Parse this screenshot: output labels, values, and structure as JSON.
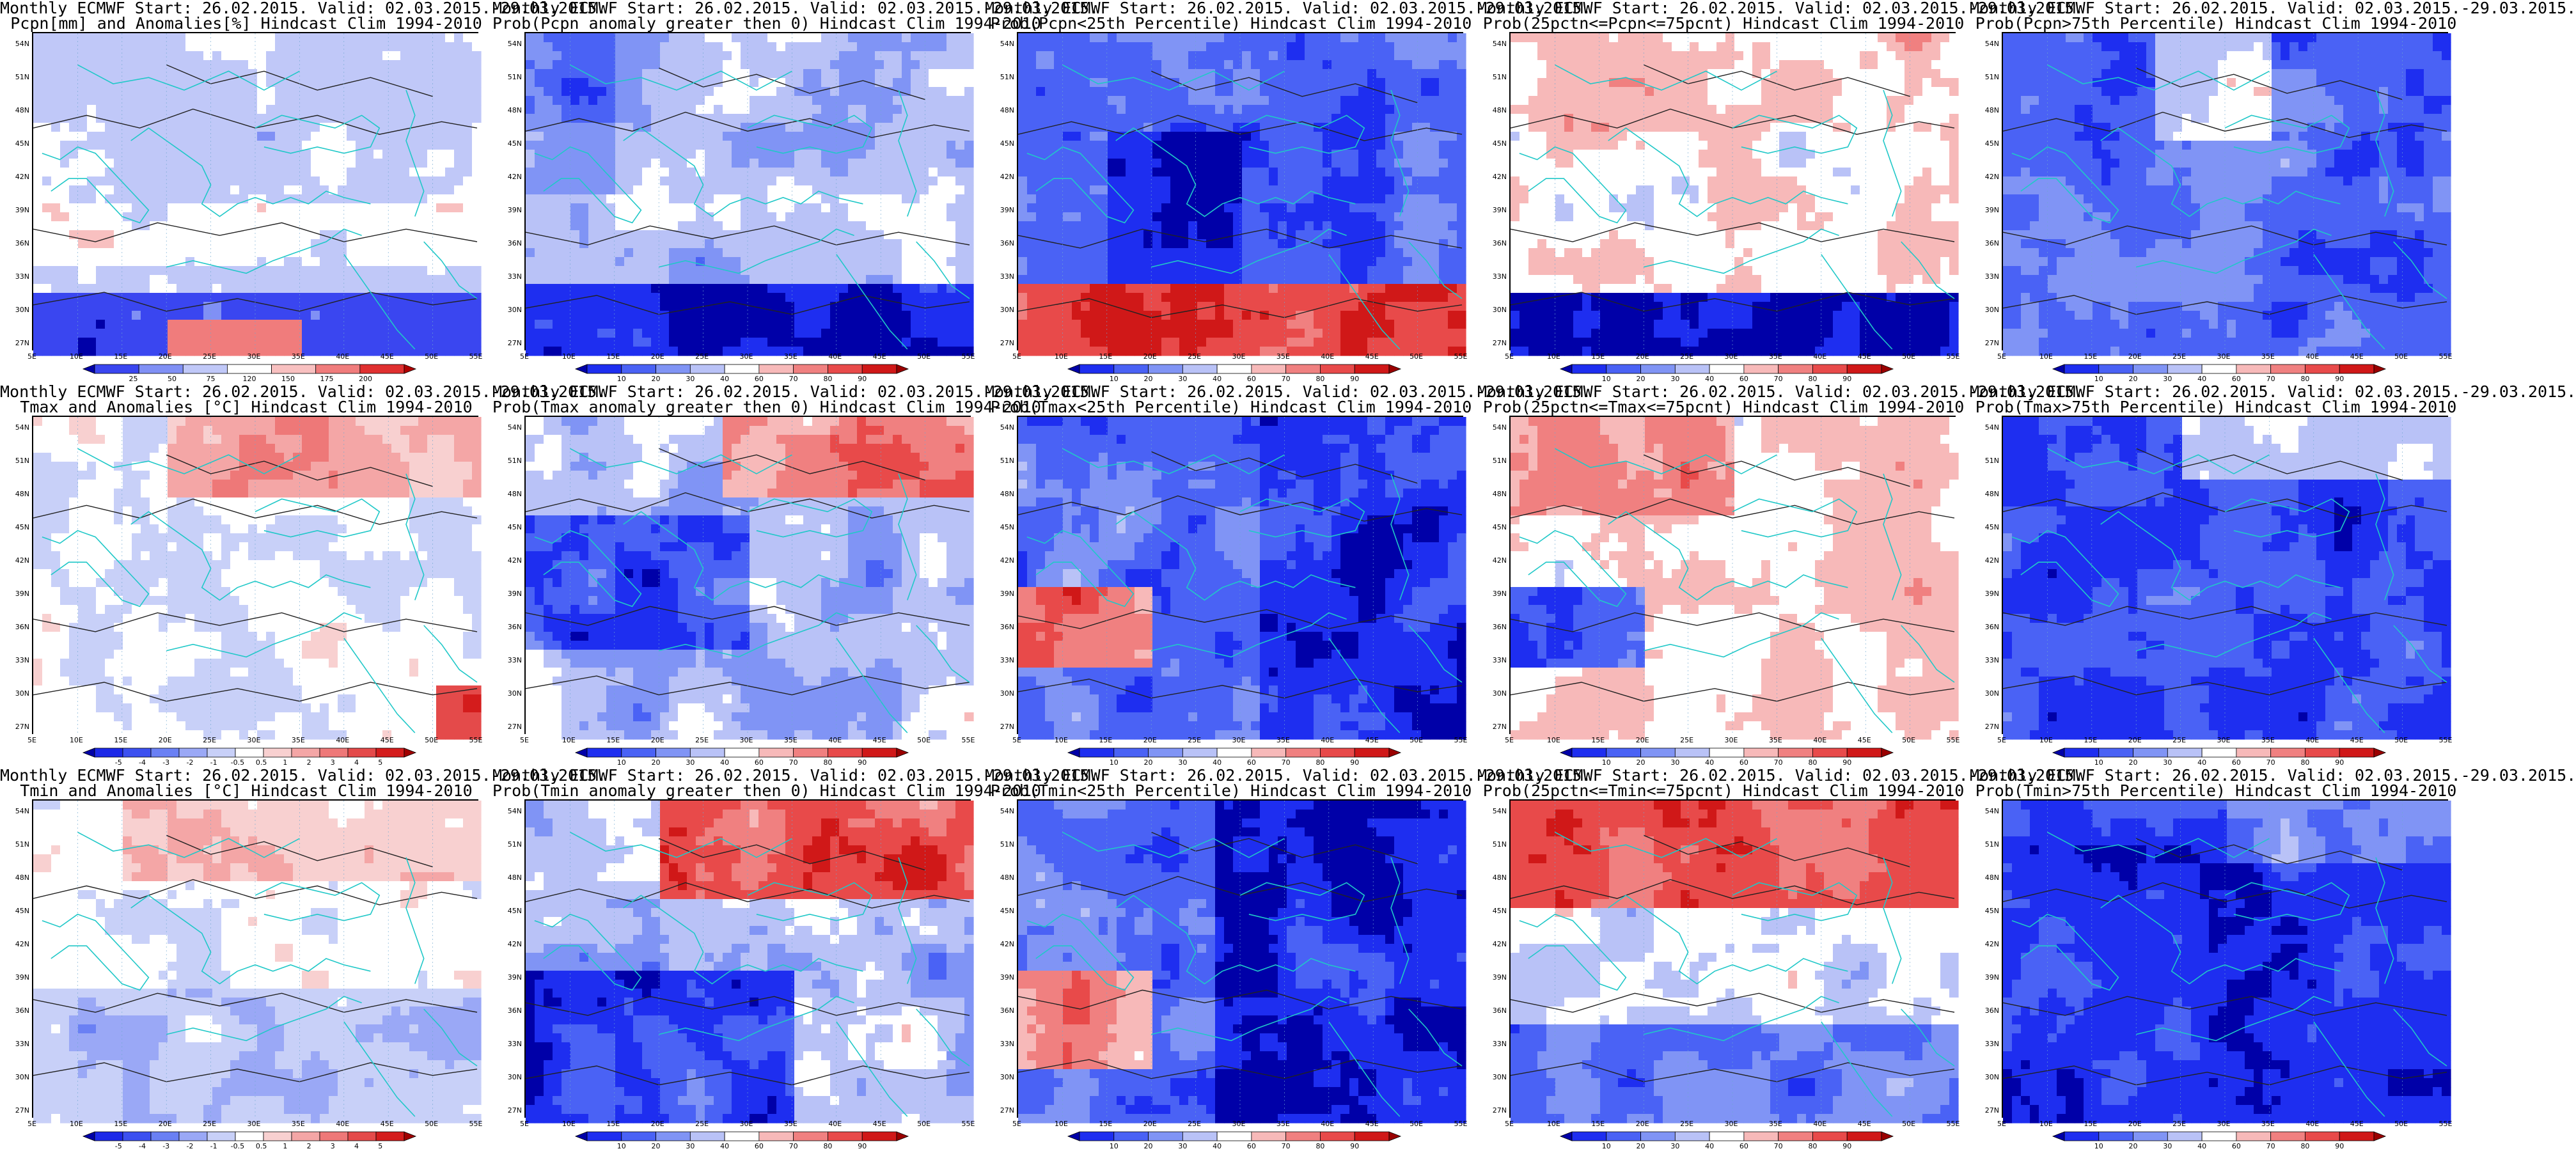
{
  "figure": {
    "panels": [
      {
        "title1": "Monthly ECMWF Start: 26.02.2015. Valid: 02.03.2015.-29.03.2015.",
        "title2": "Pcpn[mm] and Anomalies[%] Hindcast Clim 1994-2010",
        "scale": "anom_pcpn",
        "pattern": "pcpn_anom"
      },
      {
        "title1": "Monthly ECMWF Start: 26.02.2015. Valid: 02.03.2015.-29.03.2015.",
        "title2": "Prob(Pcpn anomaly greater then 0) Hindcast Clim 1994-2010",
        "scale": "prob",
        "pattern": "pcpn_pos"
      },
      {
        "title1": "Monthly ECMWF Start: 26.02.2015. Valid: 02.03.2015.-29.03.2015.",
        "title2": "Prob(Pcpn<25th Percentile) Hindcast Clim 1994-2010",
        "scale": "prob",
        "pattern": "pcpn_low"
      },
      {
        "title1": "Monthly ECMWF Start: 26.02.2015. Valid: 02.03.2015.-29.03.2015.",
        "title2": "Prob(25pctn<=Pcpn<=75pcnt) Hindcast Clim 1994-2010",
        "scale": "prob",
        "pattern": "pcpn_mid"
      },
      {
        "title1": "Monthly ECMWF Start: 26.02.2015. Valid: 02.03.2015.-29.03.2015.",
        "title2": "Prob(Pcpn>75th Percentile) Hindcast Clim 1994-2010",
        "scale": "prob",
        "pattern": "pcpn_high"
      },
      {
        "title1": "Monthly ECMWF Start: 26.02.2015. Valid: 02.03.2015.-29.03.2015.",
        "title2": "Tmax and Anomalies [°C] Hindcast Clim 1994-2010",
        "scale": "anom_temp",
        "pattern": "tmax_anom"
      },
      {
        "title1": "Monthly ECMWF Start: 26.02.2015. Valid: 02.03.2015.-29.03.2015.",
        "title2": "Prob(Tmax anomaly greater then 0) Hindcast Clim 1994-2010",
        "scale": "prob",
        "pattern": "tmax_pos"
      },
      {
        "title1": "Monthly ECMWF Start: 26.02.2015. Valid: 02.03.2015.-29.03.2015.",
        "title2": "Prob(Tmax<25th Percentile) Hindcast Clim 1994-2010",
        "scale": "prob",
        "pattern": "tmax_low"
      },
      {
        "title1": "Monthly ECMWF Start: 26.02.2015. Valid: 02.03.2015.-29.03.2015.",
        "title2": "Prob(25pctn<=Tmax<=75pcnt) Hindcast Clim 1994-2010",
        "scale": "prob",
        "pattern": "tmax_mid"
      },
      {
        "title1": "Monthly ECMWF Start: 26.02.2015. Valid: 02.03.2015.-29.03.2015.",
        "title2": "Prob(Tmax>75th Percentile) Hindcast Clim 1994-2010",
        "scale": "prob",
        "pattern": "tmax_high"
      },
      {
        "title1": "Monthly ECMWF Start: 26.02.2015. Valid: 02.03.2015.-29.03.2015.",
        "title2": "Tmin and Anomalies [°C] Hindcast Clim 1994-2010",
        "scale": "anom_temp",
        "pattern": "tmin_anom"
      },
      {
        "title1": "Monthly ECMWF Start: 26.02.2015. Valid: 02.03.2015.-29.03.2015.",
        "title2": "Prob(Tmin anomaly greater then 0) Hindcast Clim 1994-2010",
        "scale": "prob",
        "pattern": "tmin_pos"
      },
      {
        "title1": "Monthly ECMWF Start: 26.02.2015. Valid: 02.03.2015.-29.03.2015.",
        "title2": "Prob(Tmin<25th Percentile) Hindcast Clim 1994-2010",
        "scale": "prob",
        "pattern": "tmin_low"
      },
      {
        "title1": "Monthly ECMWF Start: 26.02.2015. Valid: 02.03.2015.-29.03.2015.",
        "title2": "Prob(25pctn<=Tmin<=75pcnt) Hindcast Clim 1994-2010",
        "scale": "prob",
        "pattern": "tmin_mid"
      },
      {
        "title1": "Monthly ECMWF Start: 26.02.2015. Valid: 02.03.2015.-29.03.2015.",
        "title2": "Prob(Tmin>75th Percentile) Hindcast Clim 1994-2010",
        "scale": "prob",
        "pattern": "tmin_high"
      }
    ],
    "lat_labels": [
      "54N",
      "51N",
      "48N",
      "45N",
      "42N",
      "39N",
      "36N",
      "33N",
      "30N",
      "27N"
    ],
    "lon_labels": [
      "5E",
      "10E",
      "15E",
      "20E",
      "25E",
      "30E",
      "35E",
      "40E",
      "45E",
      "50E",
      "55E"
    ],
    "scales": {
      "prob": {
        "labels": [
          "10",
          "20",
          "30",
          "40",
          "60",
          "70",
          "80",
          "90"
        ],
        "colors": [
          "#0000a8",
          "#1e2ef0",
          "#4a62f5",
          "#8094f5",
          "#b9c2f7",
          "#ffffff",
          "#f7b9b9",
          "#f08080",
          "#e84a4a",
          "#d01818",
          "#9a0000"
        ]
      },
      "anom_pcpn": {
        "labels": [
          "25",
          "50",
          "75",
          "120",
          "150",
          "175",
          "200"
        ],
        "colors": [
          "#0000a8",
          "#3a46f0",
          "#8090f5",
          "#c0c8f8",
          "#ffffff",
          "#f8c0c0",
          "#f07c7c",
          "#e03030",
          "#b00000"
        ]
      },
      "anom_temp": {
        "labels": [
          "-5",
          "-4",
          "-3",
          "-2",
          "-1",
          "-0.5",
          "0.5",
          "1",
          "2",
          "3",
          "4",
          "5"
        ],
        "colors": [
          "#0000a8",
          "#1c28e8",
          "#3c50f0",
          "#6a80f4",
          "#9aa8f6",
          "#c8d0f8",
          "#ffffff",
          "#f8d0d0",
          "#f4a6a6",
          "#ee7878",
          "#e44a4a",
          "#d41c1c",
          "#a00000"
        ]
      }
    },
    "colors": {
      "coast": "#20c8c8",
      "contour": "#222222",
      "frame": "#000000"
    }
  }
}
